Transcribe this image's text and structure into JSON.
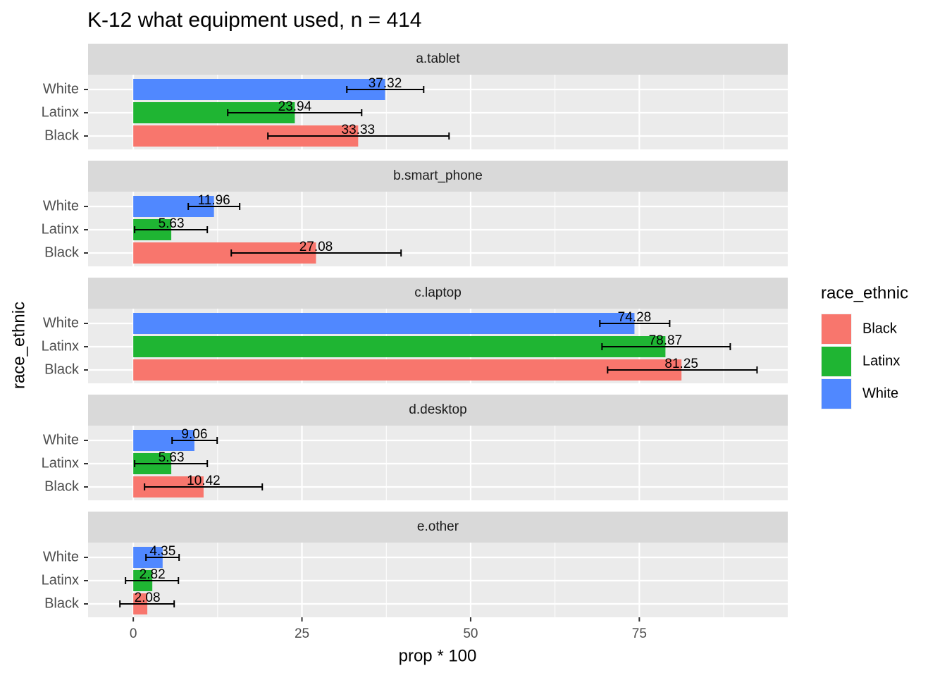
{
  "chart_data": {
    "type": "bar",
    "title": "K-12 what equipment used, n = 414",
    "x_label": "prop * 100",
    "y_label": "race_ethnic",
    "legend_title": "race_ethnic",
    "facets": [
      "a.tablet",
      "b.smart_phone",
      "c.laptop",
      "d.desktop",
      "e.other"
    ],
    "series": [
      {
        "name": "Black",
        "color": "#f8766d",
        "values": [
          33.33,
          27.08,
          81.25,
          10.42,
          2.08
        ],
        "lower": [
          19.95,
          14.52,
          70.3,
          1.67,
          -1.98
        ],
        "upper": [
          46.8,
          39.69,
          92.45,
          19.12,
          6.06
        ]
      },
      {
        "name": "Latinx",
        "color": "#1fb533",
        "values": [
          23.94,
          5.63,
          78.87,
          5.63,
          2.82
        ],
        "lower": [
          14.0,
          0.2,
          69.47,
          0.2,
          -1.15
        ],
        "upper": [
          33.85,
          10.97,
          88.48,
          10.97,
          6.69
        ]
      },
      {
        "name": "White",
        "color": "#5088ff",
        "values": [
          37.32,
          11.96,
          74.28,
          9.06,
          4.35
        ],
        "lower": [
          31.65,
          8.15,
          69.15,
          5.75,
          1.88
        ],
        "upper": [
          43.04,
          15.77,
          79.5,
          12.43,
          6.79
        ]
      }
    ],
    "xlim": [
      -6.7,
      97.0
    ],
    "xticks": [
      0,
      25,
      50,
      75
    ],
    "grid": true,
    "legend_position": "right"
  }
}
